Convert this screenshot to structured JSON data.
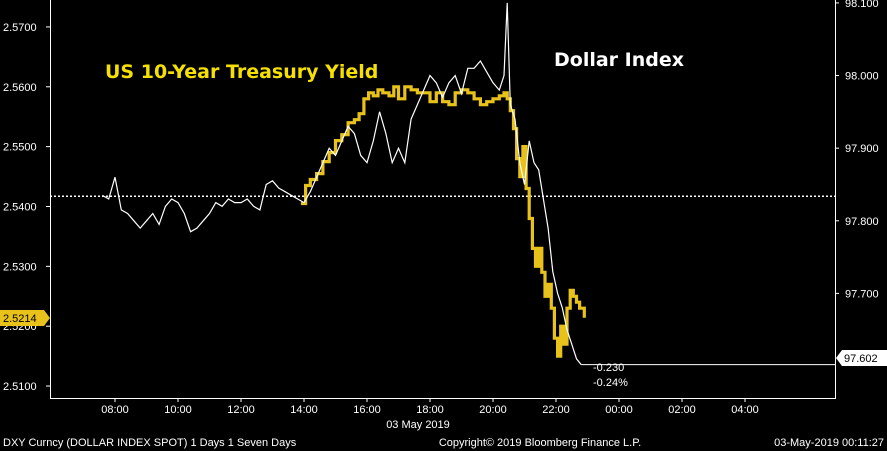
{
  "chart_data": {
    "type": "line",
    "title_left": "US 10-Year Treasury Yield",
    "title_right": "Dollar Index",
    "x_ticks": [
      "08:00",
      "10:00",
      "12:00",
      "14:00",
      "16:00",
      "18:00",
      "20:00",
      "22:00",
      "00:00",
      "02:00",
      "04:00"
    ],
    "x_date_label": "03 May 2019",
    "left_axis": {
      "ticks": [
        "2.5700",
        "2.5600",
        "2.5500",
        "2.5400",
        "2.5300",
        "2.5200",
        "2.5100"
      ],
      "ylim": [
        2.508,
        2.5745
      ],
      "current_value_tag": "2.5214"
    },
    "right_axis": {
      "ticks": [
        "98.100",
        "98.000",
        "97.900",
        "97.800",
        "97.700"
      ],
      "ylim": [
        97.556,
        98.104
      ],
      "current_value_tag": "97.602"
    },
    "reference_line": {
      "axis": "left",
      "value": 2.5417
    },
    "annotations": [
      "-0.230",
      "-0.24%"
    ],
    "series": [
      {
        "name": "US 10-Year Treasury Yield",
        "axis": "left",
        "color": "#e8c21a",
        "x": [
          13.9,
          14.05,
          14.2,
          14.4,
          14.6,
          14.8,
          15.0,
          15.2,
          15.4,
          15.6,
          15.75,
          15.9,
          16.05,
          16.2,
          16.35,
          16.5,
          16.7,
          16.85,
          17.0,
          17.2,
          17.4,
          17.6,
          17.8,
          18.0,
          18.2,
          18.4,
          18.6,
          18.8,
          19.0,
          19.2,
          19.4,
          19.6,
          19.8,
          20.0,
          20.2,
          20.35,
          20.45,
          20.55,
          20.65,
          20.75,
          20.85,
          20.95,
          21.05,
          21.15,
          21.25,
          21.35,
          21.45,
          21.55,
          21.65,
          21.75,
          21.85,
          21.95,
          22.05,
          22.15,
          22.25,
          22.35,
          22.45,
          22.55,
          22.65,
          22.75,
          22.9
        ],
        "values": [
          2.5405,
          2.5435,
          2.5445,
          2.5455,
          2.5475,
          2.549,
          2.551,
          2.552,
          2.554,
          2.5545,
          2.5555,
          2.558,
          2.559,
          2.5585,
          2.5595,
          2.559,
          2.5585,
          2.56,
          2.558,
          2.56,
          2.5595,
          2.559,
          2.559,
          2.5575,
          2.559,
          2.5575,
          2.557,
          2.559,
          2.5595,
          2.559,
          2.558,
          2.557,
          2.5575,
          2.558,
          2.5585,
          2.559,
          2.558,
          2.556,
          2.553,
          2.548,
          2.545,
          2.55,
          2.543,
          2.538,
          2.533,
          2.53,
          2.533,
          2.529,
          2.525,
          2.527,
          2.523,
          2.518,
          2.515,
          2.52,
          2.517,
          2.523,
          2.526,
          2.525,
          2.524,
          2.523,
          2.5214
        ]
      },
      {
        "name": "Dollar Index",
        "axis": "right",
        "color": "#ffffff",
        "x": [
          7.6,
          7.8,
          8.0,
          8.2,
          8.4,
          8.6,
          8.8,
          9.0,
          9.2,
          9.4,
          9.6,
          9.8,
          10.0,
          10.2,
          10.4,
          10.6,
          10.8,
          11.0,
          11.2,
          11.4,
          11.6,
          11.8,
          12.0,
          12.2,
          12.4,
          12.6,
          12.8,
          13.0,
          13.2,
          13.4,
          13.6,
          13.8,
          14.0,
          14.2,
          14.4,
          14.6,
          14.8,
          15.0,
          15.2,
          15.4,
          15.6,
          15.8,
          16.0,
          16.2,
          16.4,
          16.6,
          16.8,
          17.0,
          17.2,
          17.4,
          17.6,
          17.8,
          18.0,
          18.2,
          18.4,
          18.6,
          18.8,
          19.0,
          19.2,
          19.4,
          19.6,
          19.8,
          20.0,
          20.2,
          20.35,
          20.45,
          20.55,
          20.7,
          20.85,
          21.0,
          21.15,
          21.3,
          21.45,
          21.6,
          21.75,
          21.9,
          22.05,
          22.2,
          22.35,
          22.5,
          22.65,
          22.8
        ],
        "values": [
          97.835,
          97.83,
          97.86,
          97.815,
          97.81,
          97.8,
          97.79,
          97.8,
          97.81,
          97.795,
          97.82,
          97.83,
          97.825,
          97.81,
          97.785,
          97.79,
          97.8,
          97.81,
          97.825,
          97.82,
          97.83,
          97.825,
          97.825,
          97.83,
          97.82,
          97.815,
          97.85,
          97.855,
          97.845,
          97.84,
          97.835,
          97.83,
          97.825,
          97.84,
          97.86,
          97.88,
          97.9,
          97.89,
          97.91,
          97.93,
          97.92,
          97.89,
          97.88,
          97.91,
          97.95,
          97.92,
          97.88,
          97.9,
          97.88,
          97.94,
          97.96,
          97.98,
          98.0,
          97.99,
          97.97,
          97.99,
          98.0,
          97.975,
          98.01,
          98.01,
          98.02,
          98.005,
          97.99,
          97.98,
          98.0,
          98.1,
          97.96,
          97.94,
          97.88,
          97.85,
          97.91,
          97.88,
          97.87,
          97.83,
          97.79,
          97.73,
          97.7,
          97.68,
          97.65,
          97.63,
          97.61,
          97.602
        ]
      }
    ]
  },
  "footer": {
    "left": "DXY Curncy (DOLLAR INDEX SPOT) 1 Days 1 Seven Days",
    "center": "Copyright© 2019 Bloomberg Finance L.P.",
    "right": "03-May-2019 00:11:27"
  }
}
